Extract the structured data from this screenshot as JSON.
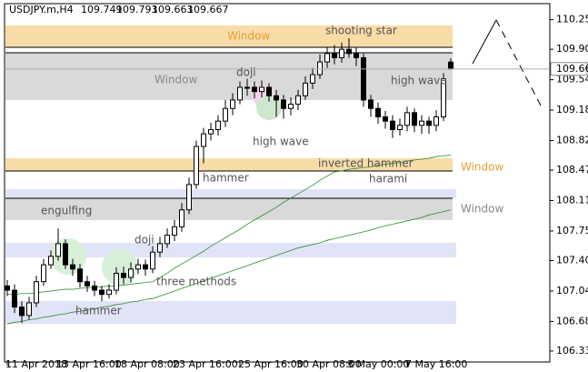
{
  "chart_data": {
    "type": "candlestick",
    "title": "USDJPY.m,H4",
    "categories": [
      "11 Apr 2018",
      null,
      null,
      null,
      null,
      null,
      null,
      "13 Apr 16:00",
      null,
      null,
      null,
      null,
      null,
      null,
      null,
      "18 Apr 08:00",
      null,
      null,
      null,
      null,
      null,
      null,
      null,
      "23 Apr 16:00",
      null,
      null,
      null,
      null,
      null,
      null,
      null,
      null,
      "25 Apr 16:00",
      null,
      null,
      null,
      null,
      null,
      null,
      null,
      "30 Apr 08:00",
      null,
      null,
      null,
      null,
      null,
      null,
      "3 May 00:00",
      null,
      null,
      null,
      null,
      null,
      null,
      null,
      "7 May 16:00",
      null,
      null,
      null,
      null,
      null,
      null
    ],
    "open": [
      107.1,
      107.05,
      106.85,
      106.75,
      106.9,
      107.15,
      107.35,
      107.45,
      107.6,
      107.35,
      107.3,
      107.15,
      107.1,
      107.05,
      107.0,
      107.05,
      107.25,
      107.2,
      107.3,
      107.35,
      107.3,
      107.5,
      107.6,
      107.7,
      107.8,
      108.0,
      108.3,
      108.75,
      108.9,
      108.95,
      109.05,
      109.2,
      109.3,
      109.45,
      109.45,
      109.4,
      109.45,
      109.35,
      109.3,
      109.2,
      109.25,
      109.35,
      109.5,
      109.6,
      109.75,
      109.85,
      109.8,
      109.9,
      109.85,
      109.8,
      109.3,
      109.2,
      109.1,
      109.05,
      108.95,
      109.0,
      109.15,
      109.0,
      109.05,
      109.0,
      109.1,
      109.749
    ],
    "high": [
      107.17,
      107.12,
      106.92,
      106.97,
      107.22,
      107.42,
      107.52,
      107.78,
      107.65,
      107.42,
      107.36,
      107.22,
      107.16,
      107.1,
      107.12,
      107.32,
      107.33,
      107.38,
      107.42,
      107.41,
      107.57,
      107.68,
      107.78,
      107.88,
      108.08,
      108.38,
      108.82,
      108.97,
      109.03,
      109.12,
      109.3,
      109.38,
      109.52,
      109.55,
      109.52,
      109.53,
      109.5,
      109.42,
      109.36,
      109.33,
      109.42,
      109.58,
      109.68,
      109.84,
      109.93,
      109.95,
      109.98,
      110.03,
      109.92,
      109.85,
      109.36,
      109.27,
      109.17,
      109.12,
      109.08,
      109.22,
      109.2,
      109.12,
      109.1,
      109.18,
      109.62,
      109.793
    ],
    "low": [
      106.98,
      106.78,
      106.66,
      106.7,
      106.85,
      107.1,
      107.3,
      107.4,
      107.3,
      107.22,
      107.08,
      107.03,
      106.98,
      106.92,
      106.95,
      107.0,
      107.12,
      107.14,
      107.24,
      107.22,
      107.25,
      107.44,
      107.55,
      107.63,
      107.74,
      107.95,
      108.25,
      108.55,
      108.82,
      108.88,
      108.98,
      109.12,
      109.25,
      109.35,
      109.32,
      109.33,
      109.28,
      109.1,
      109.08,
      109.12,
      109.18,
      109.3,
      109.43,
      109.55,
      109.68,
      109.72,
      109.74,
      109.8,
      109.7,
      109.22,
      109.1,
      109.02,
      108.96,
      108.85,
      108.88,
      108.93,
      108.92,
      108.9,
      108.9,
      108.93,
      109.05,
      109.663
    ],
    "close": [
      107.05,
      106.85,
      106.75,
      106.9,
      107.15,
      107.35,
      107.45,
      107.6,
      107.35,
      107.3,
      107.15,
      107.1,
      107.05,
      107.0,
      107.05,
      107.25,
      107.2,
      107.3,
      107.35,
      107.3,
      107.5,
      107.6,
      107.7,
      107.8,
      108.0,
      108.3,
      108.75,
      108.9,
      108.95,
      109.05,
      109.2,
      109.3,
      109.45,
      109.45,
      109.4,
      109.45,
      109.35,
      109.3,
      109.2,
      109.25,
      109.35,
      109.5,
      109.6,
      109.75,
      109.85,
      109.8,
      109.9,
      109.85,
      109.8,
      109.3,
      109.2,
      109.1,
      109.05,
      108.95,
      109.0,
      109.15,
      109.0,
      109.05,
      109.0,
      109.1,
      109.55,
      109.667
    ],
    "series": [
      {
        "color": "#2e8b2e",
        "values": [
          106.65,
          106.67,
          106.68,
          106.7,
          106.71,
          106.73,
          106.74,
          106.76,
          106.77,
          106.79,
          106.8,
          106.82,
          106.83,
          106.85,
          106.86,
          106.88,
          106.89,
          106.91,
          106.92,
          106.94,
          106.95,
          106.98,
          107.01,
          107.04,
          107.07,
          107.1,
          107.13,
          107.16,
          107.19,
          107.22,
          107.25,
          107.28,
          107.31,
          107.34,
          107.37,
          107.4,
          107.43,
          107.46,
          107.49,
          107.52,
          107.55,
          107.57,
          107.59,
          107.61,
          107.64,
          107.66,
          107.68,
          107.7,
          107.72,
          107.74,
          107.76,
          107.79,
          107.81,
          107.83,
          107.85,
          107.87,
          107.89,
          107.91,
          107.94,
          107.96,
          107.98,
          108.0
        ]
      },
      {
        "color": "#2e8b2e",
        "values": [
          107.0,
          107.0,
          107.01,
          107.01,
          107.02,
          107.03,
          107.04,
          107.05,
          107.06,
          107.06,
          107.07,
          107.08,
          107.08,
          107.09,
          107.1,
          107.1,
          107.11,
          107.12,
          107.13,
          107.14,
          107.15,
          107.2,
          107.25,
          107.31,
          107.36,
          107.41,
          107.46,
          107.51,
          107.57,
          107.62,
          107.67,
          107.72,
          107.77,
          107.83,
          107.88,
          107.93,
          107.98,
          108.03,
          108.09,
          108.14,
          108.19,
          108.24,
          108.29,
          108.35,
          108.4,
          108.45,
          108.46,
          108.48,
          108.49,
          108.5,
          108.51,
          108.53,
          108.54,
          108.55,
          108.56,
          108.58,
          108.59,
          108.6,
          108.61,
          108.63,
          108.64,
          108.65
        ]
      }
    ],
    "ylim": [
      106.2,
      110.44
    ],
    "yticks": [
      {
        "value": 106.33,
        "label": "106.330"
      },
      {
        "value": 106.68,
        "label": "106.680"
      },
      {
        "value": 107.04,
        "label": "107.040"
      },
      {
        "value": 107.4,
        "label": "107.400"
      },
      {
        "value": 107.75,
        "label": "107.750"
      },
      {
        "value": 108.11,
        "label": "108.110"
      },
      {
        "value": 108.47,
        "label": "108.470"
      },
      {
        "value": 108.82,
        "label": "108.820"
      },
      {
        "value": 109.18,
        "label": "109.180"
      },
      {
        "value": 109.54,
        "label": "109.540"
      },
      {
        "value": 109.9,
        "label": "109.900"
      },
      {
        "value": 110.25,
        "label": "110.250"
      }
    ],
    "annotations": [
      "Window",
      "Window",
      "Window",
      "Window",
      "shooting star",
      "doji",
      "high wave",
      "high wave",
      "hammer",
      "inverted hammer",
      "harami",
      "engulfing",
      "doji",
      "three methods",
      "hammer"
    ]
  }
}
